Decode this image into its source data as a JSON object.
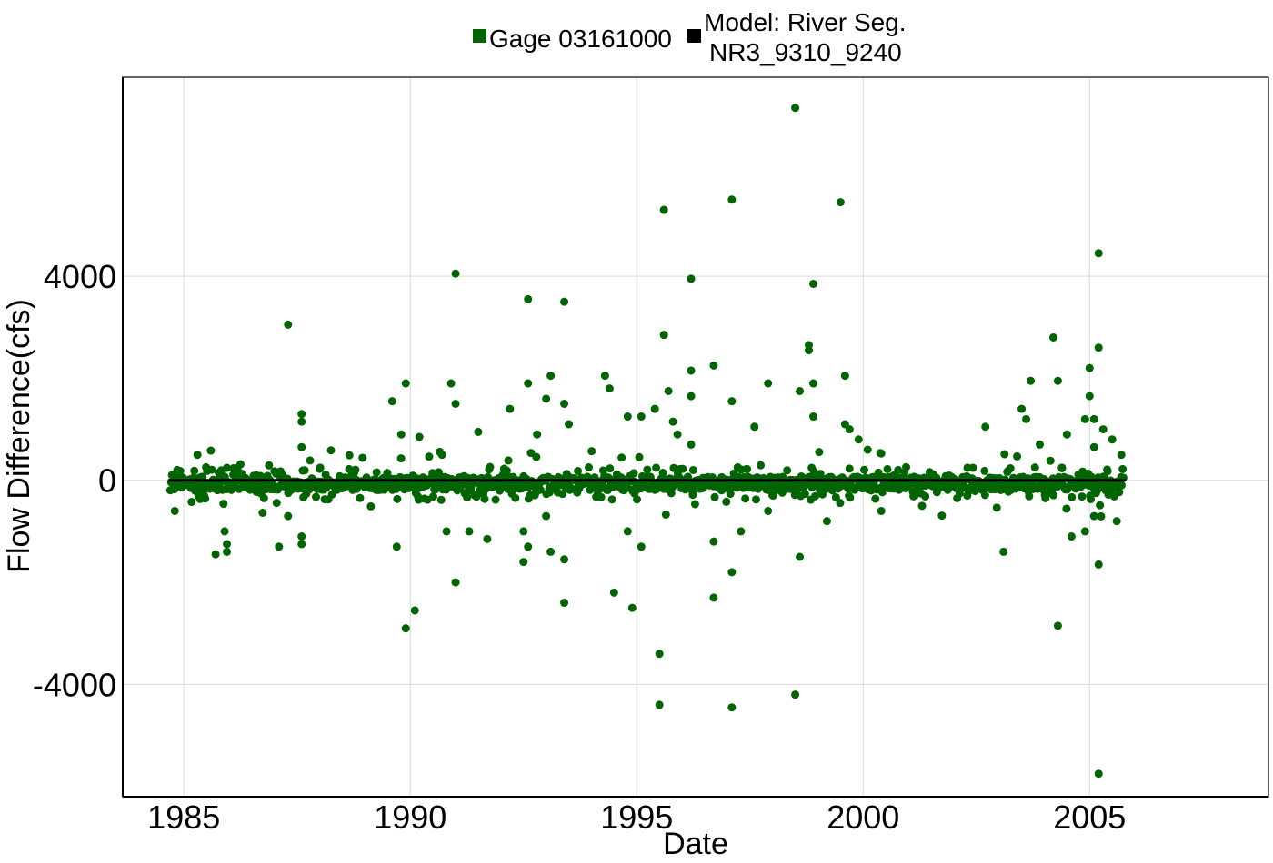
{
  "chart_data": {
    "type": "scatter",
    "xlabel": "Date",
    "ylabel": "Flow Difference(cfs)",
    "xlim": [
      1983.65,
      2008.95
    ],
    "ylim": [
      -6200,
      7900
    ],
    "x_ticks": [
      1985,
      1990,
      1995,
      2000,
      2005
    ],
    "y_ticks": [
      -4000,
      0,
      4000
    ],
    "x_tick_labels": [
      "1985",
      "1990",
      "1995",
      "2000",
      "2005"
    ],
    "y_tick_labels": [
      "-4000",
      "0",
      "4000"
    ],
    "grid": true,
    "legend_position": "top",
    "legend": [
      {
        "label": "Gage 03161000",
        "color": "#006400"
      },
      {
        "label_lines": [
          "Model: River Seg.",
          "NR3_9310_9240"
        ],
        "color": "#000000"
      }
    ],
    "series": [
      {
        "name": "Gage 03161000",
        "color": "#006400",
        "points": [
          [
            1984.8,
            -600
          ],
          [
            1985.3,
            500
          ],
          [
            1985.5,
            -100
          ],
          [
            1985.7,
            -1450
          ],
          [
            1985.9,
            -1000
          ],
          [
            1985.95,
            -1250
          ],
          [
            1985.95,
            -1400
          ],
          [
            1986.2,
            150
          ],
          [
            1986.6,
            100
          ],
          [
            1987.3,
            3050
          ],
          [
            1987.6,
            1300
          ],
          [
            1987.6,
            1150
          ],
          [
            1987.6,
            650
          ],
          [
            1987.6,
            -1100
          ],
          [
            1987.6,
            -1250
          ],
          [
            1987.1,
            -1300
          ],
          [
            1987.3,
            -700
          ],
          [
            1989.6,
            1550
          ],
          [
            1989.7,
            -1300
          ],
          [
            1989.8,
            900
          ],
          [
            1989.9,
            1900
          ],
          [
            1989.9,
            -2900
          ],
          [
            1990.1,
            -2550
          ],
          [
            1990.2,
            850
          ],
          [
            1990.7,
            500
          ],
          [
            1990.8,
            -1000
          ],
          [
            1990.9,
            1900
          ],
          [
            1991.0,
            4050
          ],
          [
            1991.0,
            1500
          ],
          [
            1991.0,
            -2000
          ],
          [
            1991.3,
            -1000
          ],
          [
            1991.5,
            950
          ],
          [
            1991.7,
            -1150
          ],
          [
            1992.2,
            1400
          ],
          [
            1992.5,
            -1600
          ],
          [
            1992.5,
            -1000
          ],
          [
            1992.6,
            3550
          ],
          [
            1992.6,
            1900
          ],
          [
            1992.6,
            -1300
          ],
          [
            1992.8,
            900
          ],
          [
            1993.0,
            1600
          ],
          [
            1993.0,
            -700
          ],
          [
            1993.1,
            2050
          ],
          [
            1993.1,
            -1400
          ],
          [
            1993.4,
            3500
          ],
          [
            1993.4,
            1500
          ],
          [
            1993.4,
            -1550
          ],
          [
            1993.4,
            -2400
          ],
          [
            1993.5,
            1100
          ],
          [
            1994.3,
            2050
          ],
          [
            1994.4,
            1800
          ],
          [
            1994.5,
            -2200
          ],
          [
            1994.8,
            1250
          ],
          [
            1994.8,
            -1000
          ],
          [
            1994.9,
            -2500
          ],
          [
            1995.1,
            -1300
          ],
          [
            1995.1,
            1250
          ],
          [
            1995.4,
            1400
          ],
          [
            1995.5,
            -3400
          ],
          [
            1995.5,
            -4400
          ],
          [
            1995.6,
            5300
          ],
          [
            1995.6,
            2850
          ],
          [
            1995.7,
            1750
          ],
          [
            1995.8,
            1150
          ],
          [
            1995.9,
            900
          ],
          [
            1996.2,
            3950
          ],
          [
            1996.2,
            2150
          ],
          [
            1996.2,
            1650
          ],
          [
            1996.2,
            700
          ],
          [
            1996.7,
            2250
          ],
          [
            1996.7,
            -1200
          ],
          [
            1996.7,
            -2300
          ],
          [
            1997.1,
            5500
          ],
          [
            1997.1,
            1550
          ],
          [
            1997.1,
            -1800
          ],
          [
            1997.1,
            -4450
          ],
          [
            1997.3,
            -1000
          ],
          [
            1997.6,
            1050
          ],
          [
            1997.9,
            1900
          ],
          [
            1997.9,
            -600
          ],
          [
            1998.5,
            7300
          ],
          [
            1998.5,
            -4200
          ],
          [
            1998.6,
            1750
          ],
          [
            1998.6,
            -1500
          ],
          [
            1998.8,
            2650
          ],
          [
            1998.8,
            2550
          ],
          [
            1998.9,
            3850
          ],
          [
            1998.9,
            1900
          ],
          [
            1998.9,
            1250
          ],
          [
            1999.2,
            -800
          ],
          [
            1999.5,
            5450
          ],
          [
            1999.6,
            2050
          ],
          [
            1999.6,
            1100
          ],
          [
            1999.7,
            1000
          ],
          [
            1999.9,
            800
          ],
          [
            2000.1,
            600
          ],
          [
            2000.4,
            -600
          ],
          [
            2001.3,
            -500
          ],
          [
            2002.3,
            -300
          ],
          [
            2002.7,
            1050
          ],
          [
            2003.1,
            -1400
          ],
          [
            2003.5,
            1400
          ],
          [
            2003.6,
            1200
          ],
          [
            2003.7,
            1950
          ],
          [
            2003.9,
            700
          ],
          [
            2004.2,
            2800
          ],
          [
            2004.3,
            1950
          ],
          [
            2004.3,
            -2850
          ],
          [
            2004.5,
            900
          ],
          [
            2004.6,
            -1100
          ],
          [
            2004.9,
            1200
          ],
          [
            2004.9,
            -1000
          ],
          [
            2005.0,
            2200
          ],
          [
            2005.0,
            1650
          ],
          [
            2005.1,
            650
          ],
          [
            2005.1,
            -700
          ],
          [
            2005.1,
            1200
          ],
          [
            2005.2,
            4450
          ],
          [
            2005.2,
            2600
          ],
          [
            2005.2,
            -1650
          ],
          [
            2005.2,
            -5750
          ],
          [
            2005.3,
            1000
          ],
          [
            2005.5,
            800
          ],
          [
            2005.6,
            -800
          ],
          [
            2005.7,
            500
          ]
        ]
      },
      {
        "name": "Model: River Seg. NR3_9310_9240",
        "color": "#000000",
        "points": [
          [
            1984.65,
            0
          ],
          [
            2005.8,
            0
          ]
        ]
      }
    ]
  }
}
